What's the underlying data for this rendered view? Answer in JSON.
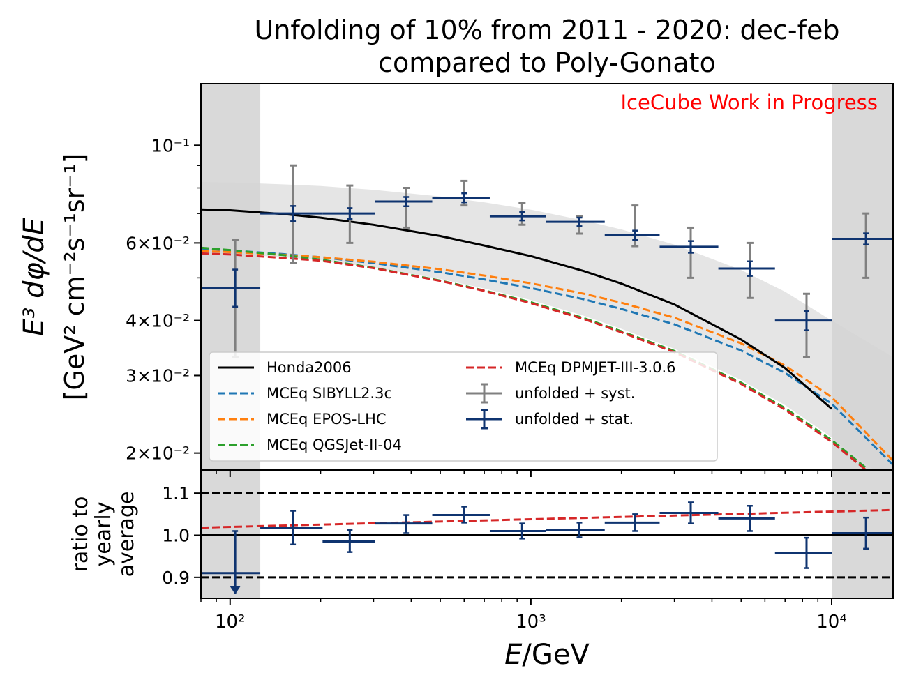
{
  "chart_data": {
    "type": "line",
    "title": [
      "Unfolding of 10% from 2011 - 2020: dec-feb",
      "compared to Poly-Gonato"
    ],
    "annotation": "IceCube Work in Progress",
    "annotation_color": "#ff0000",
    "xlabel": "E/GeV",
    "ylabel": [
      "E³ dφ/dE",
      "[GeV² cm⁻²s⁻¹sr⁻¹]"
    ],
    "ratio_ylabel": [
      "ratio to",
      "yearly",
      "average"
    ],
    "x_scale": "log",
    "y_scale": "log",
    "xlim": [
      80,
      16000
    ],
    "ylim": [
      0.0183,
      0.138
    ],
    "ratio_ylim": [
      0.85,
      1.155
    ],
    "x_ticks": [
      {
        "value": 100,
        "label": "10²"
      },
      {
        "value": 1000,
        "label": "10³"
      },
      {
        "value": 10000,
        "label": "10⁴"
      }
    ],
    "y_ticks": [
      {
        "value": 0.1,
        "label": "10⁻¹"
      },
      {
        "value": 0.06,
        "label": "6×10⁻²"
      },
      {
        "value": 0.04,
        "label": "4×10⁻²"
      },
      {
        "value": 0.03,
        "label": "3×10⁻²"
      },
      {
        "value": 0.02,
        "label": "2×10⁻²"
      }
    ],
    "ratio_y_ticks": [
      {
        "value": 0.9,
        "label": "0.9"
      },
      {
        "value": 1.0,
        "label": "1.0"
      },
      {
        "value": 1.1,
        "label": "1.1"
      }
    ],
    "shaded_regions": [
      [
        80,
        126
      ],
      [
        10000,
        16000
      ]
    ],
    "legend_position": "lower-left",
    "grid": false,
    "series": [
      {
        "name": "Honda2006",
        "style": "solid",
        "color": "#000000",
        "x": [
          80,
          100,
          150,
          200,
          300,
          500,
          700,
          1000,
          1500,
          2000,
          3000,
          5000,
          7000,
          10000
        ],
        "y": [
          0.0715,
          0.0712,
          0.0698,
          0.0685,
          0.066,
          0.0622,
          0.0592,
          0.056,
          0.0518,
          0.0485,
          0.0435,
          0.0362,
          0.0312,
          0.0252
        ]
      },
      {
        "name": "MCEq SIBYLL2.3c",
        "style": "dashed",
        "color": "#1f77b4",
        "x": [
          80,
          100,
          150,
          200,
          300,
          500,
          700,
          1000,
          1500,
          2000,
          3000,
          5000,
          7000,
          10000,
          16000
        ],
        "y": [
          0.0583,
          0.0577,
          0.0566,
          0.0557,
          0.054,
          0.0515,
          0.0496,
          0.0474,
          0.0447,
          0.0425,
          0.0392,
          0.0342,
          0.0304,
          0.0259,
          0.0188
        ]
      },
      {
        "name": "MCEq EPOS-LHC",
        "style": "dashed",
        "color": "#ff7f0e",
        "x": [
          80,
          100,
          150,
          200,
          300,
          500,
          700,
          1000,
          1500,
          2000,
          3000,
          5000,
          7000,
          10000,
          16000
        ],
        "y": [
          0.0575,
          0.0572,
          0.0564,
          0.0557,
          0.0544,
          0.0523,
          0.0506,
          0.0486,
          0.046,
          0.0439,
          0.0406,
          0.0355,
          0.0316,
          0.0268,
          0.0192
        ]
      },
      {
        "name": "MCEq QGSJet-II-04",
        "style": "dashed",
        "color": "#2ca02c",
        "x": [
          80,
          100,
          150,
          200,
          300,
          500,
          700,
          1000,
          1500,
          2000,
          3000,
          5000,
          7000,
          10000,
          16000
        ],
        "y": [
          0.0585,
          0.0578,
          0.0563,
          0.055,
          0.0527,
          0.0493,
          0.0468,
          0.044,
          0.0405,
          0.0378,
          0.0341,
          0.0289,
          0.0253,
          0.0214,
          0.0165
        ]
      },
      {
        "name": "MCEq DPMJET-III-3.0.6",
        "style": "dashed",
        "color": "#d62728",
        "x": [
          80,
          100,
          150,
          200,
          300,
          500,
          700,
          1000,
          1500,
          2000,
          3000,
          5000,
          7000,
          10000,
          16000
        ],
        "y": [
          0.0568,
          0.0565,
          0.0555,
          0.0547,
          0.0526,
          0.0492,
          0.0467,
          0.0438,
          0.0403,
          0.0376,
          0.0339,
          0.0287,
          0.0251,
          0.0212,
          0.0163
        ]
      }
    ],
    "band": {
      "color": "#d3d3d3",
      "x": [
        80,
        100,
        150,
        200,
        300,
        500,
        700,
        1000,
        1500,
        2000,
        3000,
        5000,
        7000,
        10000,
        16000
      ],
      "upper": [
        0.0825,
        0.0823,
        0.0815,
        0.0808,
        0.0792,
        0.0765,
        0.0742,
        0.0714,
        0.0675,
        0.0644,
        0.0595,
        0.0521,
        0.0465,
        0.04,
        0.033
      ],
      "lower": [
        0.057,
        0.0566,
        0.0557,
        0.0548,
        0.0528,
        0.0497,
        0.0473,
        0.0445,
        0.041,
        0.0383,
        0.0345,
        0.0293,
        0.0257,
        0.0217,
        0.017
      ]
    },
    "unfolded": {
      "syst_name": "unfolded + syst.",
      "stat_name": "unfolded + stat.",
      "syst_color": "#808080",
      "stat_color": "#0f3470",
      "points": [
        {
          "x": 104,
          "xlo": 80,
          "xhi": 126,
          "y": 0.0475,
          "stat": [
            0.043,
            0.0522
          ],
          "syst": [
            0.033,
            0.061
          ]
        },
        {
          "x": 162,
          "xlo": 126,
          "xhi": 203,
          "y": 0.07,
          "stat": [
            0.0672,
            0.0728
          ],
          "syst": [
            0.054,
            0.09
          ]
        },
        {
          "x": 250,
          "xlo": 203,
          "xhi": 303,
          "y": 0.07,
          "stat": [
            0.068,
            0.072
          ],
          "syst": [
            0.06,
            0.081
          ]
        },
        {
          "x": 385,
          "xlo": 303,
          "xhi": 470,
          "y": 0.0745,
          "stat": [
            0.0727,
            0.0763
          ],
          "syst": [
            0.065,
            0.08
          ]
        },
        {
          "x": 600,
          "xlo": 470,
          "xhi": 730,
          "y": 0.076,
          "stat": [
            0.0742,
            0.0778
          ],
          "syst": [
            0.073,
            0.083
          ]
        },
        {
          "x": 935,
          "xlo": 730,
          "xhi": 1120,
          "y": 0.069,
          "stat": [
            0.0675,
            0.0705
          ],
          "syst": [
            0.066,
            0.074
          ]
        },
        {
          "x": 1450,
          "xlo": 1120,
          "xhi": 1760,
          "y": 0.067,
          "stat": [
            0.0655,
            0.0685
          ],
          "syst": [
            0.063,
            0.069
          ]
        },
        {
          "x": 2220,
          "xlo": 1760,
          "xhi": 2680,
          "y": 0.0625,
          "stat": [
            0.061,
            0.064
          ],
          "syst": [
            0.059,
            0.073
          ]
        },
        {
          "x": 3400,
          "xlo": 2680,
          "xhi": 4200,
          "y": 0.0588,
          "stat": [
            0.057,
            0.0606
          ],
          "syst": [
            0.05,
            0.065
          ]
        },
        {
          "x": 5350,
          "xlo": 4200,
          "xhi": 6480,
          "y": 0.0525,
          "stat": [
            0.0505,
            0.0545
          ],
          "syst": [
            0.045,
            0.06
          ]
        },
        {
          "x": 8250,
          "xlo": 6480,
          "xhi": 10000,
          "y": 0.04,
          "stat": [
            0.038,
            0.042
          ],
          "syst": [
            0.033,
            0.046
          ]
        },
        {
          "x": 13000,
          "xlo": 10000,
          "xhi": 16000,
          "y": 0.0613,
          "stat": [
            0.0595,
            0.0631
          ],
          "syst": [
            0.05,
            0.07
          ]
        }
      ]
    },
    "ratio": {
      "hlines": [
        {
          "value": 1.0,
          "style": "solid"
        },
        {
          "value": 0.9,
          "style": "dashed"
        },
        {
          "value": 1.1,
          "style": "dashed"
        }
      ],
      "curve": {
        "color": "#d62728",
        "style": "dashed",
        "x": [
          80,
          16000
        ],
        "y": [
          1.018,
          1.06
        ]
      },
      "points": [
        {
          "x": 104,
          "xlo": 80,
          "xhi": 126,
          "y": 0.91,
          "err": [
            0.86,
            1.01
          ],
          "upper_limit_arrow": true
        },
        {
          "x": 162,
          "xlo": 126,
          "xhi": 203,
          "y": 1.018,
          "err": [
            0.978,
            1.058
          ]
        },
        {
          "x": 250,
          "xlo": 203,
          "xhi": 303,
          "y": 0.985,
          "err": [
            0.96,
            1.012
          ]
        },
        {
          "x": 385,
          "xlo": 303,
          "xhi": 470,
          "y": 1.028,
          "err": [
            1.005,
            1.048
          ]
        },
        {
          "x": 600,
          "xlo": 470,
          "xhi": 730,
          "y": 1.048,
          "err": [
            1.03,
            1.068
          ]
        },
        {
          "x": 935,
          "xlo": 730,
          "xhi": 1120,
          "y": 1.01,
          "err": [
            0.992,
            1.028
          ]
        },
        {
          "x": 1450,
          "xlo": 1120,
          "xhi": 1760,
          "y": 1.012,
          "err": [
            0.995,
            1.03
          ]
        },
        {
          "x": 2220,
          "xlo": 1760,
          "xhi": 2680,
          "y": 1.03,
          "err": [
            1.01,
            1.05
          ]
        },
        {
          "x": 3400,
          "xlo": 2680,
          "xhi": 4200,
          "y": 1.053,
          "err": [
            1.028,
            1.078
          ]
        },
        {
          "x": 5350,
          "xlo": 4200,
          "xhi": 6480,
          "y": 1.04,
          "err": [
            1.01,
            1.07
          ]
        },
        {
          "x": 8250,
          "xlo": 6480,
          "xhi": 10000,
          "y": 0.958,
          "err": [
            0.922,
            0.994
          ]
        },
        {
          "x": 13000,
          "xlo": 10000,
          "xhi": 16000,
          "y": 1.005,
          "err": [
            0.968,
            1.042
          ]
        }
      ]
    }
  }
}
